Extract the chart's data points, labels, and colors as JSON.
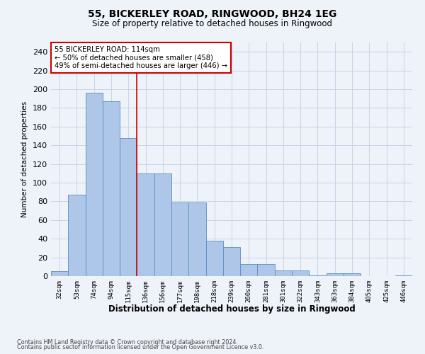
{
  "title1": "55, BICKERLEY ROAD, RINGWOOD, BH24 1EG",
  "title2": "Size of property relative to detached houses in Ringwood",
  "xlabel": "Distribution of detached houses by size in Ringwood",
  "ylabel": "Number of detached properties",
  "footer1": "Contains HM Land Registry data © Crown copyright and database right 2024.",
  "footer2": "Contains public sector information licensed under the Open Government Licence v3.0.",
  "annotation_line1": "55 BICKERLEY ROAD: 114sqm",
  "annotation_line2": "← 50% of detached houses are smaller (458)",
  "annotation_line3": "49% of semi-detached houses are larger (446) →",
  "bar_labels": [
    "32sqm",
    "53sqm",
    "74sqm",
    "94sqm",
    "115sqm",
    "136sqm",
    "156sqm",
    "177sqm",
    "198sqm",
    "218sqm",
    "239sqm",
    "260sqm",
    "281sqm",
    "301sqm",
    "322sqm",
    "343sqm",
    "363sqm",
    "384sqm",
    "405sqm",
    "425sqm",
    "446sqm"
  ],
  "bar_values": [
    5,
    87,
    196,
    187,
    148,
    110,
    110,
    79,
    79,
    38,
    31,
    13,
    13,
    6,
    6,
    1,
    3,
    3,
    0,
    0,
    1
  ],
  "bar_color": "#aec6e8",
  "bar_edge_color": "#5a8fc2",
  "vline_index": 4,
  "vline_color": "#cc0000",
  "annotation_box_edgecolor": "#cc0000",
  "annotation_box_facecolor": "white",
  "background_color": "#eef2f9",
  "plot_bg_color": "#eef2f9",
  "ylim": [
    0,
    250
  ],
  "yticks": [
    0,
    20,
    40,
    60,
    80,
    100,
    120,
    140,
    160,
    180,
    200,
    220,
    240
  ]
}
